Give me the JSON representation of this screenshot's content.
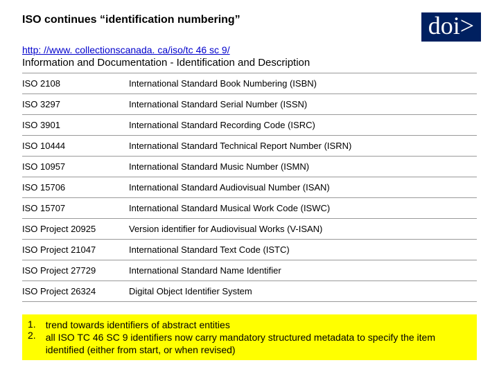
{
  "header": {
    "title": "ISO continues “identification numbering”",
    "badge": "doi>",
    "link": "http: //www. collectionscanada. ca/iso/tc 46 sc 9/",
    "subtitle": "Information and Documentation - Identification and Description"
  },
  "badge_bg": "#002060",
  "table": {
    "rows": [
      {
        "code": "ISO 2108",
        "desc": "International Standard Book Numbering (ISBN)"
      },
      {
        "code": "ISO 3297",
        "desc": "International Standard Serial Number (ISSN)"
      },
      {
        "code": "ISO 3901",
        "desc": "International Standard Recording Code (ISRC)"
      },
      {
        "code": "ISO 10444",
        "desc": "International Standard Technical Report Number (ISRN)"
      },
      {
        "code": "ISO 10957",
        "desc": "International Standard Music Number (ISMN)"
      },
      {
        "code": "ISO 15706",
        "desc": "International Standard Audiovisual Number (ISAN)"
      },
      {
        "code": "ISO 15707",
        "desc": "International Standard Musical Work Code (ISWC)"
      },
      {
        "code": "ISO Project 20925",
        "desc": "Version identifier for Audiovisual Works (V-ISAN)"
      },
      {
        "code": "ISO Project 21047",
        "desc": "International Standard Text Code (ISTC)"
      },
      {
        "code": "ISO Project 27729",
        "desc": "International Standard Name Identifier"
      },
      {
        "code": "ISO Project 26324",
        "desc": "Digital Object Identifier System"
      }
    ]
  },
  "notes": {
    "bg": "#ffff00",
    "items": [
      {
        "num": "1.",
        "text": " trend towards identifiers of abstract entities"
      },
      {
        "num": "2.",
        "text": "all ISO TC 46 SC 9 identifiers now carry mandatory structured metadata to specify the item identified (either from start, or when revised)"
      }
    ]
  }
}
